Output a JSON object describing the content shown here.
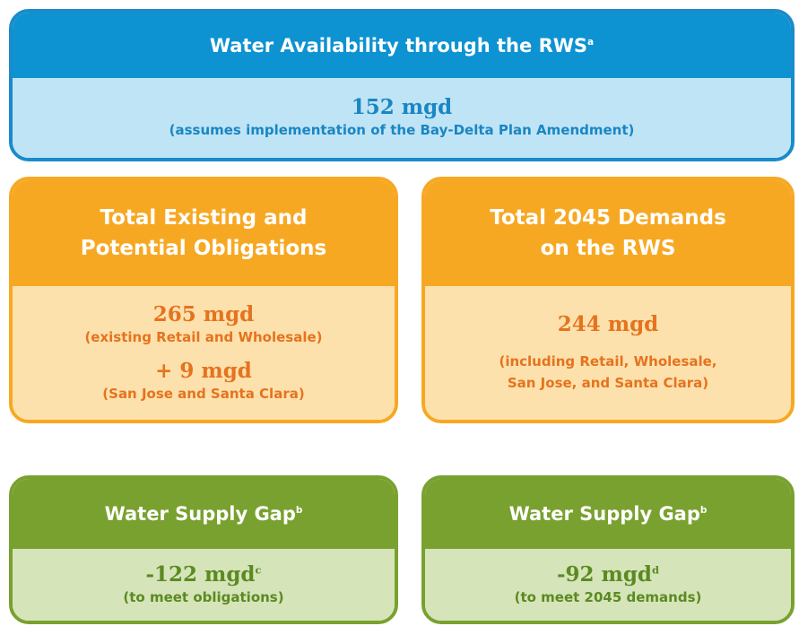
{
  "availability": {
    "title": "Water Availability through the RWS",
    "title_sup": "a",
    "value": "152 mgd",
    "note": "(assumes implementation of the Bay-Delta Plan Amendment)"
  },
  "obligations": {
    "title_lines": [
      "Total Existing and",
      "Potential Obligations"
    ],
    "value": "265 mgd",
    "note": "(existing Retail and Wholesale)",
    "extra_value": "+ 9 mgd",
    "extra_note": "(San Jose and Santa Clara)"
  },
  "demands": {
    "title_lines": [
      "Total 2045 Demands",
      "on the RWS"
    ],
    "value": "244 mgd",
    "note_lines": [
      "(including Retail, Wholesale,",
      "San Jose, and Santa Clara)"
    ]
  },
  "gap_obligations": {
    "title": "Water Supply Gap",
    "title_sup": "b",
    "value": "-122 mgd",
    "value_sup": "c",
    "note": "(to meet obligations)"
  },
  "gap_demands": {
    "title": "Water Supply Gap",
    "title_sup": "b",
    "value": "-92 mgd",
    "value_sup": "d",
    "note": "(to meet 2045 demands)"
  }
}
